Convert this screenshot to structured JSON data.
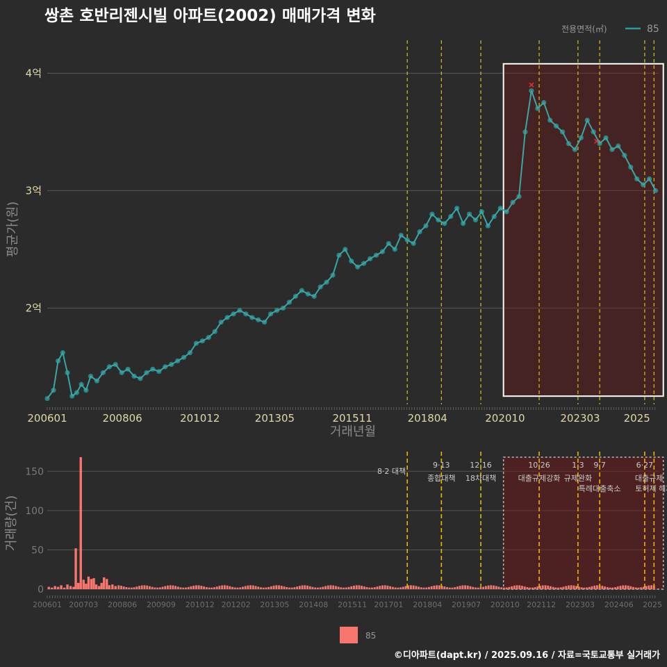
{
  "title": "쌍촌 호반리젠시빌 아파트(2002) 매매가격 변화",
  "legend_title": "전용면적(㎡)",
  "footer": "©디아파트(dapt.kr) / 2025.09.16 / 자료=국토교통부 실거래가",
  "chart_data": [
    {
      "type": "line",
      "name": "price",
      "xlabel": "거래년월",
      "ylabel": "평균가(원)",
      "y_ticks": [
        "2억",
        "3억",
        "4억"
      ],
      "y_tick_values": [
        2.0,
        3.0,
        4.0
      ],
      "ylim": [
        1.18,
        4.28
      ],
      "x_ticks": [
        "200601",
        "200806",
        "201012",
        "201305",
        "201511",
        "201804",
        "202010",
        "202303",
        "2025"
      ],
      "x_tick_years": [
        2006.0,
        2008.42,
        2010.92,
        2013.33,
        2015.83,
        2018.25,
        2020.75,
        2023.17,
        2025.0
      ],
      "xlim": [
        2006.0,
        2025.7
      ],
      "series": [
        {
          "name": "85",
          "color": "#2e9a9a",
          "x": [
            2006.0,
            2006.2,
            2006.35,
            2006.5,
            2006.65,
            2006.8,
            2006.95,
            2007.1,
            2007.25,
            2007.4,
            2007.6,
            2007.8,
            2008.0,
            2008.2,
            2008.4,
            2008.6,
            2008.8,
            2009.0,
            2009.2,
            2009.4,
            2009.6,
            2009.8,
            2010.0,
            2010.2,
            2010.4,
            2010.6,
            2010.8,
            2011.0,
            2011.2,
            2011.4,
            2011.6,
            2011.8,
            2012.0,
            2012.2,
            2012.4,
            2012.6,
            2012.8,
            2013.0,
            2013.2,
            2013.4,
            2013.6,
            2013.8,
            2014.0,
            2014.2,
            2014.4,
            2014.6,
            2014.8,
            2015.0,
            2015.2,
            2015.4,
            2015.6,
            2015.8,
            2016.0,
            2016.2,
            2016.4,
            2016.6,
            2016.8,
            2017.0,
            2017.2,
            2017.4,
            2017.6,
            2017.8,
            2018.0,
            2018.2,
            2018.4,
            2018.6,
            2018.8,
            2019.0,
            2019.2,
            2019.4,
            2019.6,
            2019.8,
            2020.0,
            2020.2,
            2020.4,
            2020.6,
            2020.8,
            2021.0,
            2021.2,
            2021.4,
            2021.6,
            2021.8,
            2022.0,
            2022.2,
            2022.4,
            2022.6,
            2022.8,
            2023.0,
            2023.2,
            2023.4,
            2023.6,
            2023.8,
            2024.0,
            2024.2,
            2024.4,
            2024.6,
            2024.8,
            2025.0,
            2025.2,
            2025.4,
            2025.6
          ],
          "values": [
            1.23,
            1.3,
            1.55,
            1.62,
            1.45,
            1.25,
            1.28,
            1.35,
            1.3,
            1.42,
            1.38,
            1.45,
            1.5,
            1.52,
            1.45,
            1.48,
            1.42,
            1.4,
            1.45,
            1.48,
            1.46,
            1.5,
            1.52,
            1.55,
            1.58,
            1.62,
            1.7,
            1.72,
            1.75,
            1.8,
            1.88,
            1.92,
            1.95,
            1.98,
            1.95,
            1.92,
            1.9,
            1.88,
            1.95,
            1.98,
            2.0,
            2.05,
            2.1,
            2.15,
            2.12,
            2.1,
            2.18,
            2.22,
            2.28,
            2.45,
            2.5,
            2.4,
            2.35,
            2.38,
            2.42,
            2.45,
            2.48,
            2.55,
            2.5,
            2.62,
            2.58,
            2.55,
            2.65,
            2.7,
            2.8,
            2.75,
            2.72,
            2.78,
            2.85,
            2.72,
            2.8,
            2.75,
            2.82,
            2.7,
            2.78,
            2.85,
            2.82,
            2.9,
            2.95,
            3.5,
            3.85,
            3.7,
            3.75,
            3.6,
            3.55,
            3.5,
            3.4,
            3.35,
            3.45,
            3.6,
            3.5,
            3.4,
            3.45,
            3.35,
            3.38,
            3.3,
            3.2,
            3.1,
            3.05,
            3.1,
            3.0
          ]
        }
      ],
      "cancelled_marks": [
        {
          "x": 2021.6,
          "y": 3.9
        },
        {
          "x": 2023.7,
          "y": 3.42
        }
      ],
      "vlines_x": [
        2017.6,
        2018.7,
        2019.97,
        2021.85,
        2023.1,
        2023.8,
        2025.25,
        2025.55
      ],
      "highlight_x": [
        2020.7,
        2025.85
      ],
      "highlight_y": [
        1.25,
        4.08
      ]
    },
    {
      "type": "bar",
      "name": "volume",
      "ylabel": "거래량(건)",
      "y_ticks": [
        "0",
        "50",
        "100",
        "150"
      ],
      "y_tick_values": [
        0,
        50,
        100,
        150
      ],
      "ylim": [
        0,
        175
      ],
      "x_ticks": [
        "200601",
        "200703",
        "200806",
        "200909",
        "201012",
        "201202",
        "201305",
        "201408",
        "201511",
        "201701",
        "201804",
        "201907",
        "202010",
        "202112",
        "202303",
        "202406",
        "2025"
      ],
      "x_tick_years": [
        2006.0,
        2007.17,
        2008.42,
        2009.67,
        2010.92,
        2012.08,
        2013.33,
        2014.58,
        2015.83,
        2017.0,
        2018.25,
        2019.5,
        2020.75,
        2021.92,
        2023.17,
        2024.42,
        2025.5
      ],
      "xlim": [
        2006.0,
        2025.7
      ],
      "series": [
        {
          "name": "85",
          "color": "#f8766d",
          "x": [
            2006.05,
            2006.15,
            2006.25,
            2006.35,
            2006.45,
            2006.55,
            2006.65,
            2006.75,
            2006.85,
            2006.92,
            2007.0,
            2007.08,
            2007.17,
            2007.25,
            2007.33,
            2007.42,
            2007.5,
            2007.58,
            2007.67,
            2007.75,
            2007.83,
            2007.92,
            2008.0,
            2008.1,
            2008.2
          ],
          "values": [
            3,
            2,
            4,
            3,
            5,
            2,
            6,
            4,
            3,
            52,
            8,
            168,
            12,
            7,
            16,
            13,
            14,
            6,
            4,
            8,
            15,
            13,
            5,
            6,
            4
          ]
        }
      ],
      "annotations": [
        {
          "date": "8·2 대책",
          "detail": "",
          "x": 2017.6
        },
        {
          "date": "9·13",
          "detail": "종합대책",
          "x": 2018.7
        },
        {
          "date": "12·16",
          "detail": "18차대책",
          "x": 2019.97
        },
        {
          "date": "10·26",
          "detail": "대출규제강화",
          "x": 2021.85
        },
        {
          "date": "1·3",
          "detail": "규제완화",
          "x": 2023.1
        },
        {
          "date": "9·7",
          "detail": "특례대출축소",
          "x": 2023.8
        },
        {
          "date": "6·27",
          "detail": "대출규제",
          "x": 2025.25
        },
        {
          "date": "",
          "detail": "토허제 해제",
          "x": 2024.9
        }
      ]
    }
  ]
}
